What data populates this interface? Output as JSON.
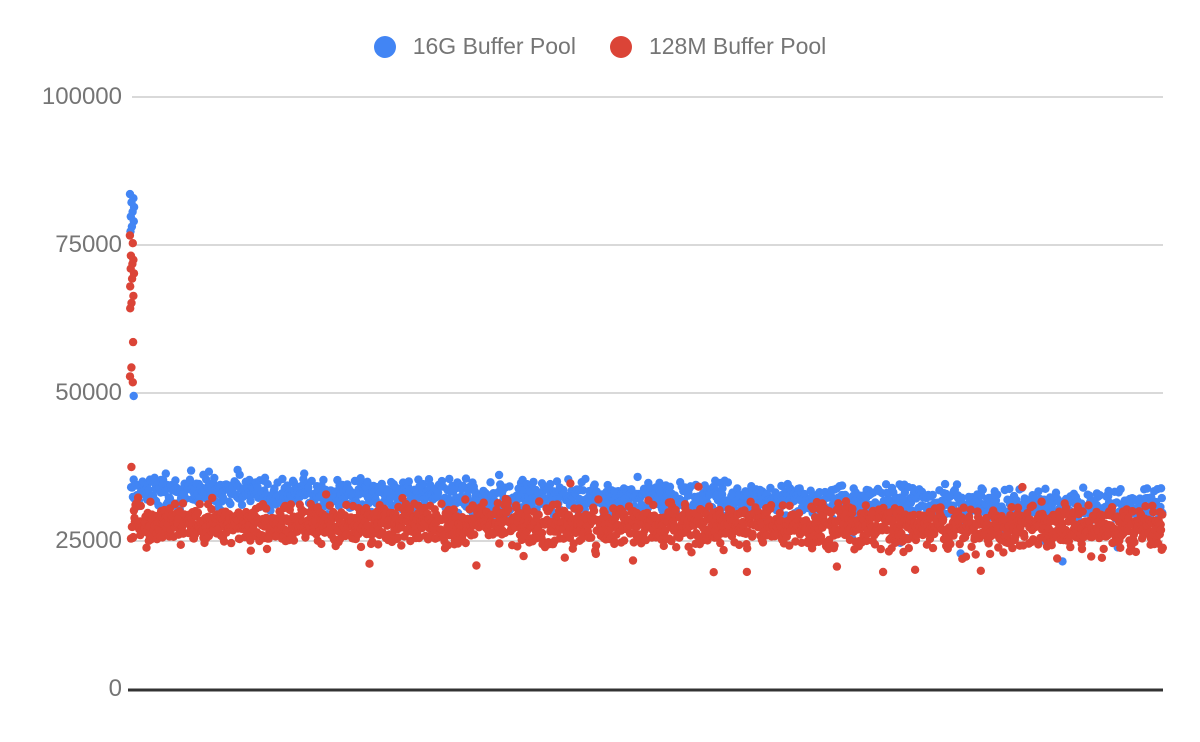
{
  "chart_data": {
    "type": "scatter",
    "title": "",
    "xlabel": "",
    "ylabel": "",
    "x_axis_labels_visible": false,
    "ylim": [
      0,
      100000
    ],
    "yticks": [
      100000,
      75000,
      50000,
      25000,
      0
    ],
    "ytick_labels": [
      "100000",
      "75000",
      "50000",
      "25000",
      "0"
    ],
    "grid": true,
    "legend_position": "top-center",
    "colors": {
      "grid_line": "#d9d9d9",
      "axis_line": "#333333",
      "tick_text": "#757575",
      "legend_text": "#757575",
      "background": "#ffffff"
    },
    "series": [
      {
        "name": "16G Buffer Pool",
        "color": "#4285f4",
        "marker": "circle",
        "point_count": 1450,
        "band": {
          "mean_start": 33700,
          "mean_end": 30900,
          "stddev": 1350,
          "max": 38200,
          "min": 20500,
          "low_tail_after_frac": 0.6,
          "low_tail_rate": 0.02,
          "low_tail_drop": 8500
        },
        "startup_outliers": [
          83600,
          82900,
          82200,
          81400,
          80600,
          79800,
          79000,
          78100,
          77300,
          49500
        ]
      },
      {
        "name": "128M Buffer Pool",
        "color": "#db4437",
        "marker": "circle",
        "point_count": 2000,
        "band": {
          "mean_start": 28000,
          "mean_end": 27400,
          "stddev": 1650,
          "max": 38300,
          "min": 17800,
          "low_tail_rate": 0.035,
          "low_tail_drop": 5500,
          "high_tail_rate": 0.006,
          "high_tail_rise": 6200
        },
        "startup_outliers": [
          76600,
          75300,
          73200,
          72500,
          71800,
          71000,
          70200,
          69300,
          68000,
          66400,
          65200,
          64300,
          58600,
          54300,
          52800,
          51800,
          37500
        ]
      }
    ]
  }
}
